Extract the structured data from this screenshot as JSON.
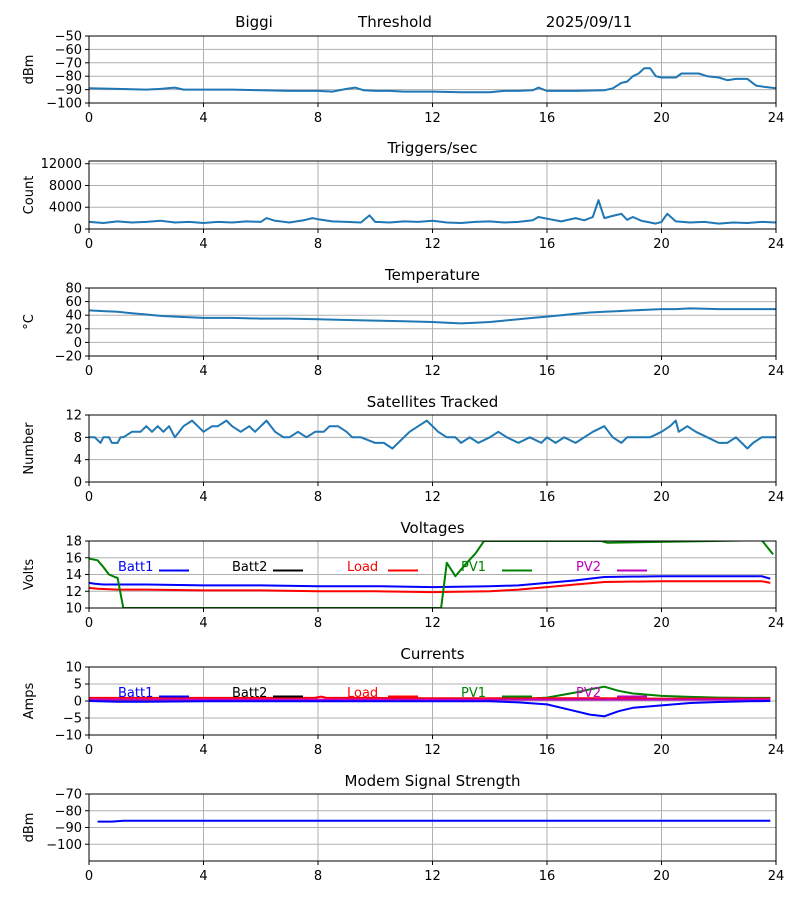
{
  "header": {
    "site": "Biggi",
    "measure": "Threshold",
    "date": "2025/09/11"
  },
  "colors": {
    "blue": "#1f77b4",
    "batt1": "#0000ff",
    "batt2": "#000000",
    "load": "#ff0000",
    "pv1": "#008000",
    "pv2": "#bf00bf",
    "grid": "#b0b0b0"
  },
  "chart_data": [
    {
      "id": "threshold",
      "type": "line",
      "title": "",
      "ylabel": "dBm",
      "xlim": [
        0,
        24
      ],
      "ylim": [
        -100,
        -50
      ],
      "x_ticks": [
        "0",
        "4",
        "8",
        "12",
        "16",
        "20",
        "24"
      ],
      "y_ticks": [
        "−50",
        "−60",
        "−70",
        "−80",
        "−90",
        "−100"
      ],
      "y_tick_values": [
        -50,
        -60,
        -70,
        -80,
        -90,
        -100
      ],
      "grid": true,
      "series": [
        {
          "x": [
            0,
            1,
            2,
            2.5,
            3,
            3.3,
            4,
            5,
            6,
            7,
            8,
            8.5,
            9,
            9.3,
            9.6,
            10,
            10.5,
            11,
            12,
            13,
            14,
            14.5,
            15,
            15.5,
            15.7,
            16,
            17,
            18,
            18.3,
            18.6,
            18.8,
            19,
            19.2,
            19.4,
            19.6,
            19.8,
            20,
            20.5,
            20.7,
            21,
            21.3,
            21.6,
            22,
            22.3,
            22.6,
            23,
            23.3,
            23.6,
            24
          ],
          "y": [
            -89,
            -89.5,
            -90,
            -89.5,
            -88.5,
            -90,
            -90,
            -90,
            -90.5,
            -91,
            -91,
            -91.5,
            -89.5,
            -88.5,
            -90.5,
            -91,
            -91,
            -91.5,
            -91.5,
            -92,
            -92,
            -91,
            -91,
            -90.5,
            -88.5,
            -91,
            -91,
            -90.5,
            -89,
            -85,
            -84,
            -80,
            -78,
            -74,
            -74,
            -80,
            -81,
            -81,
            -78,
            -78,
            -78,
            -80,
            -81,
            -83,
            -82,
            -82,
            -87,
            -88,
            -89
          ]
        }
      ]
    },
    {
      "id": "triggers",
      "type": "line",
      "title": "Triggers/sec",
      "ylabel": "Count",
      "xlim": [
        0,
        24
      ],
      "ylim": [
        0,
        12500
      ],
      "x_ticks": [
        "0",
        "4",
        "8",
        "12",
        "16",
        "20",
        "24"
      ],
      "y_ticks": [
        "0",
        "4000",
        "8000",
        "12000"
      ],
      "y_tick_values": [
        0,
        4000,
        8000,
        12000
      ],
      "grid": true,
      "series": [
        {
          "x": [
            0,
            0.5,
            1,
            1.5,
            2,
            2.5,
            3,
            3.5,
            4,
            4.5,
            5,
            5.5,
            6,
            6.2,
            6.5,
            7,
            7.5,
            7.8,
            8,
            8.5,
            9,
            9.5,
            9.8,
            10,
            10.5,
            11,
            11.5,
            12,
            12.5,
            13,
            13.5,
            14,
            14.5,
            15,
            15.5,
            15.7,
            16,
            16.5,
            17,
            17.3,
            17.6,
            17.8,
            18,
            18.3,
            18.6,
            18.8,
            19,
            19.3,
            19.5,
            19.8,
            20,
            20.2,
            20.5,
            21,
            21.5,
            22,
            22.5,
            23,
            23.5,
            24
          ],
          "y": [
            1300,
            1100,
            1400,
            1200,
            1300,
            1500,
            1200,
            1300,
            1100,
            1300,
            1200,
            1400,
            1300,
            2000,
            1500,
            1200,
            1600,
            2000,
            1800,
            1400,
            1300,
            1200,
            2500,
            1300,
            1200,
            1400,
            1300,
            1500,
            1200,
            1100,
            1300,
            1400,
            1200,
            1300,
            1600,
            2200,
            1900,
            1400,
            2000,
            1600,
            2200,
            5300,
            2000,
            2400,
            2800,
            1700,
            2200,
            1500,
            1300,
            1000,
            1300,
            2800,
            1400,
            1200,
            1300,
            1000,
            1200,
            1100,
            1300,
            1200
          ]
        }
      ]
    },
    {
      "id": "temperature",
      "type": "line",
      "title": "Temperature",
      "ylabel": "°C",
      "xlim": [
        0,
        24
      ],
      "ylim": [
        -20,
        80
      ],
      "x_ticks": [
        "0",
        "4",
        "8",
        "12",
        "16",
        "20",
        "24"
      ],
      "y_ticks": [
        "−20",
        "0",
        "20",
        "40",
        "60",
        "80"
      ],
      "y_tick_values": [
        -20,
        0,
        20,
        40,
        60,
        80
      ],
      "grid": true,
      "series": [
        {
          "x": [
            0,
            0.5,
            1,
            1.5,
            2,
            2.5,
            3,
            3.5,
            4,
            5,
            6,
            7,
            8,
            9,
            10,
            11,
            12,
            12.5,
            13,
            13.5,
            14,
            14.5,
            15,
            15.5,
            16,
            16.5,
            17,
            17.5,
            18,
            18.5,
            19,
            19.5,
            20,
            20.5,
            21,
            22,
            23,
            24
          ],
          "y": [
            47,
            46,
            45,
            43,
            41,
            39,
            38,
            37,
            36,
            36,
            35,
            35,
            34,
            33,
            32,
            31,
            30,
            29,
            28,
            29,
            30,
            32,
            34,
            36,
            38,
            40,
            42,
            44,
            45,
            46,
            47,
            48,
            49,
            49,
            50,
            49,
            49,
            49
          ]
        }
      ]
    },
    {
      "id": "satellites",
      "type": "line",
      "title": "Satellites Tracked",
      "ylabel": "Number",
      "xlim": [
        0,
        24
      ],
      "ylim": [
        0,
        12
      ],
      "x_ticks": [
        "0",
        "4",
        "8",
        "12",
        "16",
        "20",
        "24"
      ],
      "y_ticks": [
        "0",
        "4",
        "8",
        "12"
      ],
      "y_tick_values": [
        0,
        4,
        8,
        12
      ],
      "grid": true,
      "series": [
        {
          "x": [
            0,
            0.2,
            0.4,
            0.5,
            0.7,
            0.8,
            1,
            1.1,
            1.2,
            1.5,
            1.8,
            2,
            2.2,
            2.4,
            2.6,
            2.8,
            3,
            3.3,
            3.6,
            3.8,
            4,
            4.3,
            4.5,
            4.8,
            5,
            5.3,
            5.6,
            5.8,
            6,
            6.2,
            6.5,
            6.8,
            7,
            7.3,
            7.6,
            7.9,
            8.2,
            8.4,
            8.7,
            9,
            9.2,
            9.5,
            10,
            10.3,
            10.6,
            11,
            11.2,
            11.5,
            11.8,
            12,
            12.2,
            12.5,
            12.8,
            13,
            13.3,
            13.6,
            14,
            14.3,
            14.6,
            15,
            15.4,
            15.8,
            16,
            16.3,
            16.6,
            17,
            17.3,
            17.6,
            18,
            18.3,
            18.6,
            18.8,
            19,
            19.3,
            19.6,
            20,
            20.3,
            20.5,
            20.6,
            20.9,
            21.2,
            21.6,
            22,
            22.3,
            22.6,
            22.8,
            23,
            23.2,
            23.5,
            23.8,
            24
          ],
          "y": [
            8,
            8,
            7,
            8,
            8,
            7,
            7,
            8,
            8,
            9,
            9,
            10,
            9,
            10,
            9,
            10,
            8,
            10,
            11,
            10,
            9,
            10,
            10,
            11,
            10,
            9,
            10,
            9,
            10,
            11,
            9,
            8,
            8,
            9,
            8,
            9,
            9,
            10,
            10,
            9,
            8,
            8,
            7,
            7,
            6,
            8,
            9,
            10,
            11,
            10,
            9,
            8,
            8,
            7,
            8,
            7,
            8,
            9,
            8,
            7,
            8,
            7,
            8,
            7,
            8,
            7,
            8,
            9,
            10,
            8,
            7,
            8,
            8,
            8,
            8,
            9,
            10,
            11,
            9,
            10,
            9,
            8,
            7,
            7,
            8,
            7,
            6,
            7,
            8,
            8,
            8
          ]
        }
      ]
    },
    {
      "id": "voltages",
      "type": "line",
      "title": "Voltages",
      "ylabel": "Volts",
      "xlim": [
        0,
        24
      ],
      "ylim": [
        10,
        18
      ],
      "x_ticks": [
        "0",
        "4",
        "8",
        "12",
        "16",
        "20",
        "24"
      ],
      "y_ticks": [
        "10",
        "12",
        "14",
        "16",
        "18"
      ],
      "y_tick_values": [
        10,
        12,
        14,
        16,
        18
      ],
      "grid": true,
      "legend": [
        "Batt1",
        "Batt2",
        "Load",
        "PV1",
        "PV2"
      ],
      "series": [
        {
          "name": "Batt1",
          "color_key": "batt1",
          "x": [
            0,
            0.2,
            0.5,
            1,
            2,
            4,
            6,
            8,
            10,
            12,
            14,
            15,
            16,
            17,
            18,
            20,
            22,
            23.5,
            23.8
          ],
          "y": [
            13,
            12.9,
            12.8,
            12.8,
            12.8,
            12.7,
            12.7,
            12.6,
            12.6,
            12.5,
            12.6,
            12.7,
            13,
            13.3,
            13.7,
            13.8,
            13.8,
            13.8,
            13.5
          ]
        },
        {
          "name": "Load",
          "color_key": "load",
          "x": [
            0,
            0.3,
            1,
            2,
            4,
            6,
            8,
            10,
            12,
            14,
            15,
            16,
            17,
            18,
            20,
            22,
            23.5,
            23.8
          ],
          "y": [
            12.4,
            12.3,
            12.2,
            12.2,
            12.1,
            12.1,
            12,
            12,
            11.9,
            12,
            12.2,
            12.5,
            12.8,
            13.1,
            13.2,
            13.2,
            13.2,
            13
          ]
        },
        {
          "name": "PV1",
          "color_key": "pv1",
          "x": [
            0,
            0.3,
            0.5,
            0.7,
            0.9,
            1,
            1.2,
            12.3,
            12.5,
            12.8,
            13.2,
            13.5,
            13.8,
            17.9,
            18.1,
            23.5,
            23.9
          ],
          "y": [
            15.9,
            15.7,
            14.9,
            14,
            13.7,
            13.6,
            10,
            10,
            15.4,
            13.8,
            15.4,
            16.5,
            18,
            18,
            17.8,
            18.1,
            16.4
          ]
        },
        {
          "name": "Batt2",
          "color_key": "batt2",
          "x": [],
          "y": []
        },
        {
          "name": "PV2",
          "color_key": "pv2",
          "x": [],
          "y": []
        }
      ]
    },
    {
      "id": "currents",
      "type": "line",
      "title": "Currents",
      "ylabel": "Amps",
      "xlim": [
        0,
        24
      ],
      "ylim": [
        -10,
        10
      ],
      "x_ticks": [
        "0",
        "4",
        "8",
        "12",
        "16",
        "20",
        "24"
      ],
      "y_ticks": [
        "−10",
        "−5",
        "0",
        "5",
        "10"
      ],
      "y_tick_values": [
        -10,
        -5,
        0,
        5,
        10
      ],
      "grid": true,
      "legend": [
        "Batt1",
        "Batt2",
        "Load",
        "PV1",
        "PV2"
      ],
      "series": [
        {
          "name": "PV1",
          "color_key": "pv1",
          "x": [
            0,
            2,
            4,
            6,
            8,
            10,
            12,
            14,
            15,
            16,
            17,
            17.5,
            18,
            18.5,
            19,
            20,
            21,
            22,
            23,
            23.8
          ],
          "y": [
            0.3,
            0.3,
            0.3,
            0.3,
            0.3,
            0.3,
            0.3,
            0.4,
            0.5,
            1,
            2.5,
            3.4,
            4.2,
            3,
            2.2,
            1.5,
            1.2,
            1,
            0.9,
            0.9
          ]
        },
        {
          "name": "Load",
          "color_key": "load",
          "x": [
            0,
            2,
            4,
            6,
            7.9,
            8.1,
            8.3,
            10,
            12,
            14,
            16,
            18,
            20,
            22,
            23.8
          ],
          "y": [
            0.9,
            0.9,
            0.9,
            0.9,
            0.9,
            1.3,
            0.9,
            0.9,
            0.8,
            0.8,
            0.8,
            0.8,
            0.7,
            0.7,
            0.7
          ]
        },
        {
          "name": "PV2",
          "color_key": "pv2",
          "x": [
            0,
            4,
            8,
            12,
            16,
            20,
            23.8
          ],
          "y": [
            0.4,
            0.4,
            0.4,
            0.4,
            0.4,
            0.4,
            0.4
          ]
        },
        {
          "name": "Batt1",
          "color_key": "batt1",
          "x": [
            0,
            1,
            2,
            4,
            6,
            8,
            10,
            12,
            14,
            15,
            16,
            17,
            17.5,
            18,
            18.5,
            19,
            20,
            21,
            22,
            23,
            23.8
          ],
          "y": [
            0,
            -0.2,
            -0.2,
            -0.1,
            -0.1,
            -0.1,
            -0.1,
            -0.1,
            -0.1,
            -0.4,
            -1,
            -3,
            -4,
            -4.5,
            -3,
            -2,
            -1.3,
            -0.6,
            -0.3,
            -0.1,
            0
          ]
        },
        {
          "name": "Batt2",
          "color_key": "batt2",
          "x": [],
          "y": []
        }
      ]
    },
    {
      "id": "modem",
      "type": "line",
      "title": "Modem Signal Strength",
      "ylabel": "dBm",
      "xlim": [
        0,
        24
      ],
      "ylim": [
        -110,
        -70
      ],
      "x_ticks": [
        "0",
        "4",
        "8",
        "12",
        "16",
        "20",
        "24"
      ],
      "y_ticks": [
        "−70",
        "−80",
        "−90",
        "−100"
      ],
      "y_tick_values": [
        -70,
        -80,
        -90,
        -100
      ],
      "grid": true,
      "series": [
        {
          "color_key": "batt1",
          "x": [
            0.3,
            0.8,
            1.2,
            4,
            8,
            12,
            16,
            20,
            23.8
          ],
          "y": [
            -86.5,
            -86.5,
            -86,
            -86,
            -86,
            -86,
            -86,
            -86,
            -86
          ]
        }
      ]
    }
  ]
}
